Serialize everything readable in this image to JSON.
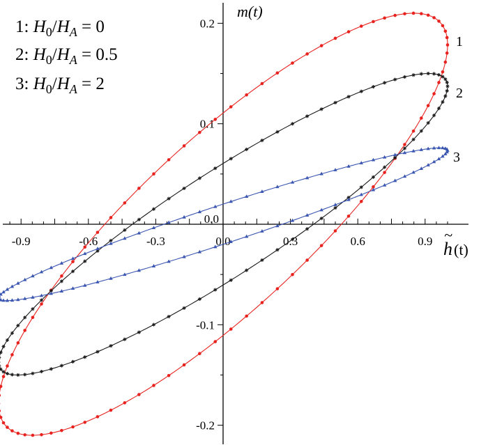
{
  "chart_data": {
    "type": "line",
    "xlabel_parts": {
      "tilde": "~",
      "name": "h",
      "arg": "(t)"
    },
    "ylabel": "m(t)",
    "xlim": [
      -1.0,
      1.0
    ],
    "ylim": [
      -0.215,
      0.22
    ],
    "xticks": [
      -0.9,
      -0.6,
      -0.3,
      0.0,
      0.3,
      0.6,
      0.9
    ],
    "xtick_labels": [
      "-0.9",
      "-0.6",
      "-0.3",
      "0.0",
      "0.3",
      "0.6",
      "0.9"
    ],
    "yticks": [
      -0.2,
      -0.1,
      0.1,
      0.2
    ],
    "ytick_labels": [
      "-0.2",
      "-0.1",
      "0.1",
      "0.2"
    ],
    "grid": false,
    "series": [
      {
        "name": "1",
        "color": "#e8231f",
        "marker": "circle",
        "description_points": "parametric loop h=cos(t), m=A*cos(t-phi)",
        "amplitude_m": 0.21,
        "phase_rad": 0.555,
        "points": 90
      },
      {
        "name": "2",
        "color": "#1a1a1a",
        "marker": "star",
        "amplitude_m": 0.15,
        "phase_rad": 0.415,
        "points": 90
      },
      {
        "name": "3",
        "color": "#3a56b0",
        "marker": "triangle",
        "amplitude_m": 0.076,
        "phase_rad": 0.2665,
        "points": 90
      }
    ],
    "legend": {
      "placement": "top-left",
      "entries": [
        {
          "num": "1:",
          "H": "H",
          "sub0": "0",
          "slash": "/",
          "sub1": "A",
          "value": "= 0"
        },
        {
          "num": "2:",
          "H": "H",
          "sub0": "0",
          "slash": "/",
          "sub1": "A",
          "value": "= 0.5"
        },
        {
          "num": "3:",
          "H": "H",
          "sub0": "0",
          "slash": "/",
          "sub1": "A",
          "value": "= 2"
        }
      ]
    }
  }
}
